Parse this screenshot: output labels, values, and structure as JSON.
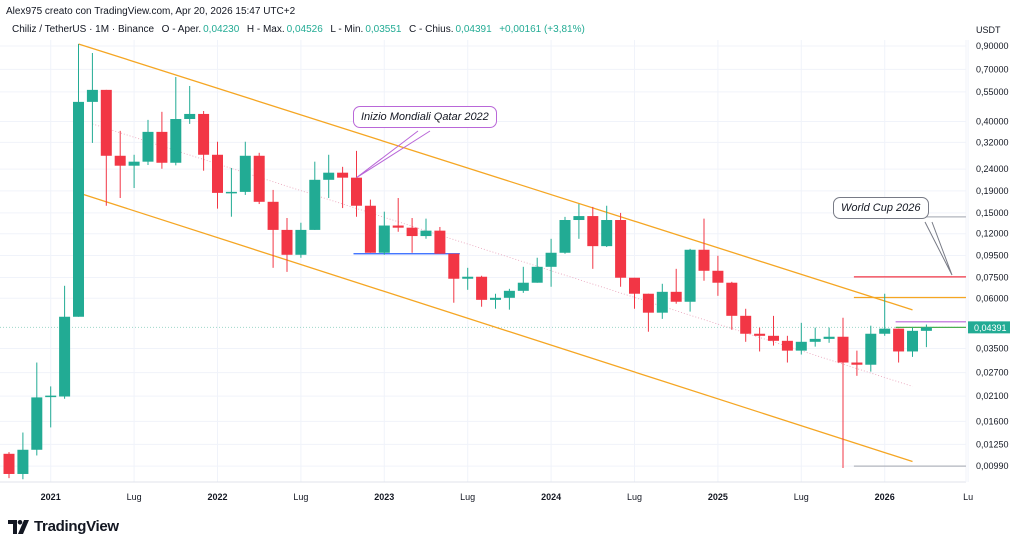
{
  "header": {
    "credit": "Alex975 creato con TradingView.com, Apr 20, 2026 15:47 UTC+2",
    "symbol": "Chiliz / TetherUS · 1M · Binance",
    "open_label": "O - Aper.",
    "open": "0,04230",
    "high_label": "H - Max.",
    "high": "0,04526",
    "low_label": "L - Min.",
    "low": "0,03551",
    "close_label": "C - Chius.",
    "close": "0,04391",
    "change": "+0,00161 (+3,81%)"
  },
  "logo": {
    "text": "TradingView"
  },
  "colors": {
    "up": "#22ab94",
    "down": "#f23645",
    "channel": "#f5a623",
    "annotation": "#b967d8",
    "text": "#131722"
  },
  "chart_data": {
    "type": "candlestick",
    "title": "",
    "scale": "log",
    "grid": true,
    "currency_label": "USDT",
    "start_month": "2020-10",
    "interval": "1M",
    "y_ticks": [
      "0,90000",
      "0,70000",
      "0,55000",
      "0,40000",
      "0,32000",
      "0,24000",
      "0,19000",
      "0,15000",
      "0,12000",
      "0,09500",
      "0,07500",
      "0,06000",
      "0,03500",
      "0,02700",
      "0,02100",
      "0,01600",
      "0,01250",
      "0,00990"
    ],
    "y_tick_values": [
      0.9,
      0.7,
      0.55,
      0.4,
      0.32,
      0.24,
      0.19,
      0.15,
      0.12,
      0.095,
      0.075,
      0.06,
      0.035,
      0.027,
      0.021,
      0.016,
      0.0125,
      0.0099
    ],
    "current_price_label": "0,04391",
    "current_price": 0.04391,
    "x_ticks": [
      {
        "label": "2021",
        "month": "2021-01",
        "bold": true
      },
      {
        "label": "Lug",
        "month": "2021-07"
      },
      {
        "label": "2022",
        "month": "2022-01",
        "bold": true
      },
      {
        "label": "Lug",
        "month": "2022-07"
      },
      {
        "label": "2023",
        "month": "2023-01",
        "bold": true
      },
      {
        "label": "Lug",
        "month": "2023-07"
      },
      {
        "label": "2024",
        "month": "2024-01",
        "bold": true
      },
      {
        "label": "Lug",
        "month": "2024-07"
      },
      {
        "label": "2025",
        "month": "2025-01",
        "bold": true
      },
      {
        "label": "Lug",
        "month": "2025-07"
      },
      {
        "label": "2026",
        "month": "2026-01",
        "bold": true
      },
      {
        "label": "Lu",
        "month": "2026-07"
      }
    ],
    "ohlc": [
      [
        0.0113,
        0.0115,
        0.0087,
        0.0091
      ],
      [
        0.0091,
        0.0142,
        0.0086,
        0.0118
      ],
      [
        0.0118,
        0.0301,
        0.0111,
        0.0207
      ],
      [
        0.0209,
        0.0233,
        0.015,
        0.0211
      ],
      [
        0.0209,
        0.0686,
        0.0204,
        0.0492
      ],
      [
        0.0492,
        0.92,
        0.0492,
        0.494
      ],
      [
        0.494,
        0.835,
        0.318,
        0.562
      ],
      [
        0.562,
        0.562,
        0.162,
        0.277
      ],
      [
        0.277,
        0.362,
        0.176,
        0.249
      ],
      [
        0.249,
        0.28,
        0.196,
        0.26
      ],
      [
        0.26,
        0.407,
        0.251,
        0.358
      ],
      [
        0.358,
        0.444,
        0.241,
        0.257
      ],
      [
        0.257,
        0.645,
        0.25,
        0.411
      ],
      [
        0.411,
        0.586,
        0.39,
        0.434
      ],
      [
        0.434,
        0.448,
        0.236,
        0.28
      ],
      [
        0.28,
        0.322,
        0.157,
        0.186
      ],
      [
        0.186,
        0.243,
        0.144,
        0.188
      ],
      [
        0.188,
        0.322,
        0.182,
        0.277
      ],
      [
        0.277,
        0.286,
        0.165,
        0.169
      ],
      [
        0.169,
        0.192,
        0.0832,
        0.125
      ],
      [
        0.125,
        0.142,
        0.0797,
        0.0957
      ],
      [
        0.0957,
        0.135,
        0.0927,
        0.125
      ],
      [
        0.125,
        0.26,
        0.125,
        0.214
      ],
      [
        0.214,
        0.28,
        0.176,
        0.231
      ],
      [
        0.231,
        0.246,
        0.158,
        0.219
      ],
      [
        0.219,
        0.292,
        0.144,
        0.162
      ],
      [
        0.162,
        0.173,
        0.0978,
        0.0978
      ],
      [
        0.0978,
        0.152,
        0.0957,
        0.131
      ],
      [
        0.131,
        0.176,
        0.1225,
        0.128
      ],
      [
        0.128,
        0.142,
        0.0978,
        0.117
      ],
      [
        0.117,
        0.141,
        0.1136,
        0.124
      ],
      [
        0.124,
        0.129,
        0.0968,
        0.0968
      ],
      [
        0.0968,
        0.0968,
        0.0572,
        0.074
      ],
      [
        0.074,
        0.0832,
        0.0657,
        0.0756
      ],
      [
        0.0756,
        0.0764,
        0.0548,
        0.059
      ],
      [
        0.059,
        0.063,
        0.0536,
        0.0603
      ],
      [
        0.0603,
        0.0664,
        0.0531,
        0.065
      ],
      [
        0.065,
        0.0841,
        0.0636,
        0.0709
      ],
      [
        0.0709,
        0.0927,
        0.0709,
        0.0841
      ],
      [
        0.0841,
        0.1136,
        0.0679,
        0.0978
      ],
      [
        0.0978,
        0.1438,
        0.0968,
        0.139
      ],
      [
        0.139,
        0.165,
        0.1136,
        0.145
      ],
      [
        0.145,
        0.16,
        0.0823,
        0.105
      ],
      [
        0.105,
        0.162,
        0.104,
        0.139
      ],
      [
        0.139,
        0.15,
        0.0679,
        0.0748
      ],
      [
        0.0748,
        0.0748,
        0.0536,
        0.063
      ],
      [
        0.063,
        0.063,
        0.0419,
        0.0514
      ],
      [
        0.0514,
        0.0701,
        0.0481,
        0.0643
      ],
      [
        0.0643,
        0.0823,
        0.0566,
        0.0578
      ],
      [
        0.0578,
        0.102,
        0.052,
        0.101
      ],
      [
        0.101,
        0.141,
        0.0724,
        0.0806
      ],
      [
        0.0806,
        0.0947,
        0.0616,
        0.0709
      ],
      [
        0.0709,
        0.0716,
        0.0428,
        0.0497
      ],
      [
        0.0497,
        0.0536,
        0.0376,
        0.041
      ],
      [
        0.041,
        0.0438,
        0.0339,
        0.0401
      ],
      [
        0.0401,
        0.0497,
        0.0361,
        0.038
      ],
      [
        0.038,
        0.0401,
        0.0301,
        0.0342
      ],
      [
        0.0342,
        0.0461,
        0.0328,
        0.0376
      ],
      [
        0.0376,
        0.0438,
        0.0357,
        0.0388
      ],
      [
        0.0388,
        0.0438,
        0.0372,
        0.0397
      ],
      [
        0.0397,
        0.0487,
        0.0097,
        0.0301
      ],
      [
        0.0301,
        0.0342,
        0.0261,
        0.0294
      ],
      [
        0.0294,
        0.0447,
        0.0273,
        0.041
      ],
      [
        0.041,
        0.063,
        0.0401,
        0.0433
      ],
      [
        0.0433,
        0.0433,
        0.0301,
        0.0339
      ],
      [
        0.0339,
        0.0438,
        0.032,
        0.0423
      ],
      [
        0.0423,
        0.04526,
        0.03551,
        0.04391
      ]
    ],
    "drawings": {
      "channel_upper": {
        "from": [
          "2021-03",
          0.92
        ],
        "to": [
          "2026-03",
          0.053
        ],
        "color": "#f5a623"
      },
      "channel_lower": {
        "from": [
          "2021-03",
          0.186
        ],
        "to": [
          "2026-03",
          0.0104
        ],
        "color": "#f5a623"
      },
      "channel_mid": {
        "from": [
          "2021-04",
          0.39
        ],
        "to": [
          "2026-03",
          0.0233
        ],
        "color": "#e8a0b8"
      },
      "levels": [
        {
          "price": 0.0755,
          "from": "2025-11",
          "color": "#f23645"
        },
        {
          "price": 0.0605,
          "from": "2025-11",
          "color": "#f5a623"
        },
        {
          "price": 0.0466,
          "from": "2026-02",
          "color": "#b967d8"
        },
        {
          "price": 0.04391,
          "from": "2026-02",
          "color": "#4caf50"
        },
        {
          "price": 0.1438,
          "from": "2026-03",
          "color": "#b2b5be"
        },
        {
          "price": 0.0099,
          "from": "2025-11",
          "color": "#b2b5be"
        },
        {
          "price": 0.0968,
          "from": "2022-11",
          "to": "2023-06",
          "color": "#2962ff"
        }
      ]
    },
    "annotations": [
      {
        "text": "Inizio Mondiali Qatar 2022",
        "month": "2022-11",
        "price": 0.219
      },
      {
        "text": "World Cup 2026",
        "month": "2026-06",
        "price": 0.077
      }
    ]
  }
}
